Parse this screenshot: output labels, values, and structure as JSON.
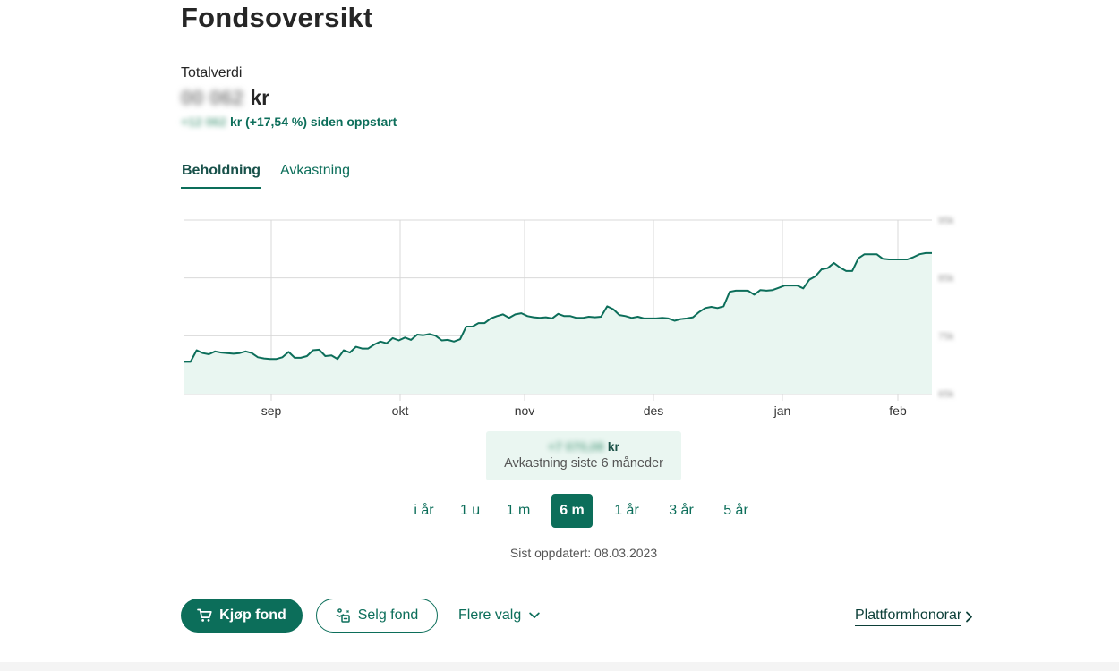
{
  "page": {
    "title": "Fondsoversikt"
  },
  "summary": {
    "total_label": "Totalverdi",
    "total_value_masked": "00 062",
    "currency": "kr",
    "return_amount_masked": "+12 062",
    "return_text": "kr (+17,54 %) siden oppstart"
  },
  "tabs": [
    {
      "label": "Beholdning",
      "active": true
    },
    {
      "label": "Avkastning",
      "active": false
    }
  ],
  "chart_data": {
    "type": "area",
    "x_ticks": [
      "sep",
      "okt",
      "nov",
      "des",
      "jan",
      "feb"
    ],
    "y_ticks_masked": [
      "95k",
      "85k",
      "75k",
      "65k"
    ],
    "ylim": [
      65,
      95
    ],
    "grid": true,
    "series": [
      {
        "values": [
          70.5,
          70.5,
          72.5,
          72,
          71.8,
          72.3,
          72.1,
          72,
          71.9,
          72,
          72.3,
          72,
          71.3,
          71.1,
          71,
          71,
          71.3,
          72.2,
          71.2,
          71.2,
          71.5,
          72.5,
          72.6,
          71.5,
          71.6,
          71,
          72.5,
          72.1,
          73.1,
          72.8,
          72.8,
          73.5,
          74,
          73.7,
          74.6,
          74.2,
          74.7,
          74.3,
          75.2,
          75.1,
          75.3,
          75,
          74.2,
          74.3,
          74,
          74.4,
          76.6,
          76.6,
          77.2,
          77.2,
          78,
          78.4,
          78.7,
          78.1,
          78.7,
          78.9,
          78.4,
          78.2,
          78.1,
          78.2,
          78,
          78.8,
          78.4,
          78.4,
          78.1,
          78.1,
          78.3,
          78.2,
          78.3,
          80.1,
          79.6,
          78.6,
          78.4,
          78.1,
          78.3,
          78,
          78,
          78,
          78.1,
          78,
          77.6,
          77.9,
          78,
          78.2,
          79.1,
          79.8,
          80,
          79.8,
          80.1,
          82.6,
          82.8,
          82.8,
          82.8,
          82.1,
          82.9,
          82.8,
          82.9,
          83.3,
          83.7,
          83.7,
          83.7,
          83.2,
          84.7,
          85.3,
          86.5,
          86.7,
          87.6,
          86.8,
          86.2,
          86.2,
          88.4,
          89.1,
          89.1,
          89.1,
          88.3,
          88.2,
          88.2,
          88.2,
          88.2,
          88.6,
          89.1,
          89.3,
          89.3
        ]
      }
    ],
    "line_color": "#0c6e5a",
    "fill_color": "#e9f6f1"
  },
  "period_summary": {
    "value_masked": "+7 070,08",
    "currency": "kr",
    "label": "Avkastning siste 6 måneder"
  },
  "periods": [
    {
      "label": "i år",
      "active": false
    },
    {
      "label": "1 u",
      "active": false
    },
    {
      "label": "1 m",
      "active": false
    },
    {
      "label": "6 m",
      "active": true
    },
    {
      "label": "1 år",
      "active": false
    },
    {
      "label": "3 år",
      "active": false
    },
    {
      "label": "5 år",
      "active": false
    }
  ],
  "updated": "Sist oppdatert: 08.03.2023",
  "actions": {
    "buy_label": "Kjøp fond",
    "buy_icon": "cart-icon",
    "sell_label": "Selg fond",
    "sell_icon": "sell-icon",
    "more_label": "Flere valg",
    "platform_label": "Plattformhonorar"
  },
  "colors": {
    "accent": "#0c6e5a",
    "dark": "#262626"
  }
}
